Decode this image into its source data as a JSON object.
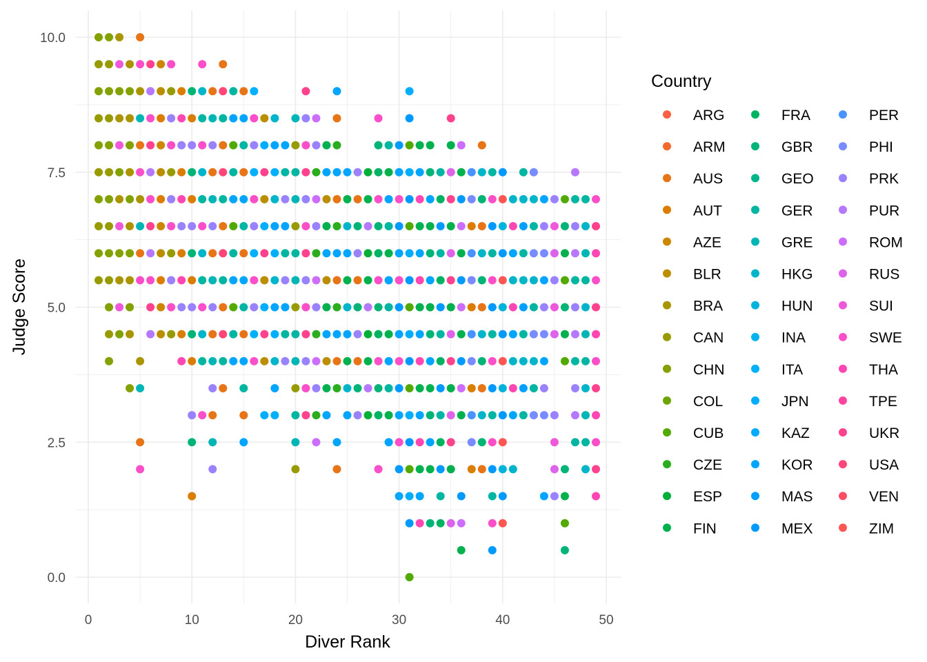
{
  "chart_data": {
    "type": "scatter",
    "xlabel": "Diver Rank",
    "ylabel": "Judge Score",
    "xlim": [
      0,
      50
    ],
    "ylim": [
      0,
      10
    ],
    "x_ticks": [
      "0",
      "10",
      "20",
      "30",
      "40",
      "50"
    ],
    "y_ticks": [
      "0.0",
      "2.5",
      "5.0",
      "7.5",
      "10.0"
    ],
    "grid": true,
    "legend": {
      "title": "Country",
      "placement": "right",
      "entries": [
        "ARG",
        "ARM",
        "AUS",
        "AUT",
        "AZE",
        "BLR",
        "BRA",
        "CAN",
        "CHN",
        "COL",
        "CUB",
        "CZE",
        "ESP",
        "FIN",
        "FRA",
        "GBR",
        "GEO",
        "GER",
        "GRE",
        "HKG",
        "HUN",
        "INA",
        "ITA",
        "JPN",
        "KAZ",
        "KOR",
        "MAS",
        "MEX",
        "PER",
        "PHI",
        "PRK",
        "PUR",
        "ROM",
        "RUS",
        "SUI",
        "SWE",
        "THA",
        "TPE",
        "UKR",
        "USA",
        "VEN",
        "ZIM"
      ]
    },
    "note": "Judge scores step 0.5; each rank lists contiguous range [min,max] plus extra low scores",
    "points_by_rank": [
      {
        "rank": 1,
        "min": 5.5,
        "max": 10,
        "extra": [],
        "countries": [
          "CHN",
          "CAN"
        ]
      },
      {
        "rank": 2,
        "min": 5.5,
        "max": 10,
        "extra": [
          4,
          4.5,
          5
        ],
        "countries": [
          "CHN",
          "CAN"
        ]
      },
      {
        "rank": 3,
        "min": 5.5,
        "max": 10,
        "extra": [
          4.5,
          5
        ],
        "countries": [
          "CHN",
          "SUI",
          "BRA"
        ]
      },
      {
        "rank": 4,
        "min": 5.5,
        "max": 9.5,
        "extra": [
          3.5,
          4.5,
          5
        ],
        "countries": [
          "CHN",
          "BRA"
        ]
      },
      {
        "rank": 5,
        "min": 5.5,
        "max": 10,
        "extra": [
          2,
          2.5,
          3.5,
          4
        ],
        "countries": [
          "BRA",
          "SWE",
          "AUS",
          "GRE"
        ]
      },
      {
        "rank": 6,
        "min": 4.5,
        "max": 9.5,
        "extra": [],
        "countries": [
          "PUR",
          "UKR",
          "SWE"
        ]
      },
      {
        "rank": 7,
        "min": 4.5,
        "max": 9.5,
        "extra": [],
        "countries": [
          "AUT",
          "BLR",
          "AZE"
        ]
      },
      {
        "rank": 8,
        "min": 4.5,
        "max": 9.5,
        "extra": [],
        "countries": [
          "SWE",
          "PRK",
          "CAN"
        ]
      },
      {
        "rank": 9,
        "min": 4,
        "max": 9,
        "extra": [],
        "countries": [
          "THA",
          "AUT",
          "PRK"
        ]
      },
      {
        "rank": 10,
        "min": 4,
        "max": 9,
        "extra": [
          1.5,
          2.5,
          3
        ],
        "countries": [
          "PRK",
          "AUT",
          "GBR"
        ]
      },
      {
        "rank": 11,
        "min": 4,
        "max": 9.5,
        "extra": [
          3
        ],
        "countries": [
          "GER",
          "HKG",
          "SWE"
        ]
      },
      {
        "rank": 12,
        "min": 4,
        "max": 9,
        "extra": [
          2,
          2.5,
          3,
          3.5
        ],
        "countries": [
          "PRK",
          "GRE",
          "AUS"
        ]
      },
      {
        "rank": 13,
        "min": 4,
        "max": 9.5,
        "extra": [
          3.5
        ],
        "countries": [
          "USA",
          "AUS",
          "GER"
        ]
      },
      {
        "rank": 14,
        "min": 4,
        "max": 9,
        "extra": [],
        "countries": [
          "GER",
          "CUB",
          "KOR"
        ]
      },
      {
        "rank": 15,
        "min": 4,
        "max": 9,
        "extra": [
          2.5,
          3,
          3.5
        ],
        "countries": [
          "KOR",
          "AUS",
          "GER"
        ]
      },
      {
        "rank": 16,
        "min": 4,
        "max": 9,
        "extra": [],
        "countries": [
          "PRK",
          "SWE",
          "ITA"
        ]
      },
      {
        "rank": 17,
        "min": 4,
        "max": 8.5,
        "extra": [
          3
        ],
        "countries": [
          "BLR",
          "UKR",
          "JPN"
        ]
      },
      {
        "rank": 18,
        "min": 4,
        "max": 8.5,
        "extra": [
          3,
          3.5
        ],
        "countries": [
          "ITA",
          "KOR",
          "HKG"
        ]
      },
      {
        "rank": 19,
        "min": 4,
        "max": 8,
        "extra": [],
        "countries": [
          "KOR",
          "PRK",
          "GER"
        ]
      },
      {
        "rank": 20,
        "min": 4,
        "max": 8.5,
        "extra": [
          2,
          2.5,
          3,
          3.5
        ],
        "countries": [
          "GRE",
          "GER",
          "CAN"
        ]
      },
      {
        "rank": 21,
        "min": 4,
        "max": 9,
        "extra": [
          3,
          3.5
        ],
        "countries": [
          "UKR",
          "SWE",
          "PRK"
        ]
      },
      {
        "rank": 22,
        "min": 4,
        "max": 8.5,
        "extra": [
          2.5,
          3,
          3.5
        ],
        "countries": [
          "PRK",
          "ROM",
          "CZE"
        ]
      },
      {
        "rank": 23,
        "min": 4,
        "max": 8,
        "extra": [
          3,
          3.5
        ],
        "countries": [
          "FIN",
          "BLR",
          "KOR"
        ]
      },
      {
        "rank": 24,
        "min": 4,
        "max": 9,
        "extra": [
          2,
          2.5,
          3.5
        ],
        "countries": [
          "AUS",
          "KOR",
          "CZE"
        ]
      },
      {
        "rank": 25,
        "min": 4,
        "max": 7.5,
        "extra": [
          3,
          3.5
        ],
        "countries": [
          "FIN",
          "KOR",
          "HKG"
        ]
      },
      {
        "rank": 26,
        "min": 4,
        "max": 7.5,
        "extra": [
          3,
          3.5
        ],
        "countries": [
          "GBR",
          "AUS",
          "PRK"
        ]
      },
      {
        "rank": 27,
        "min": 4,
        "max": 7.5,
        "extra": [
          3,
          3.5
        ],
        "countries": [
          "ESP",
          "PUR",
          "FIN"
        ]
      },
      {
        "rank": 28,
        "min": 4,
        "max": 8.5,
        "extra": [
          2,
          3,
          3.5
        ],
        "countries": [
          "GBR",
          "SWE",
          "FRA"
        ]
      },
      {
        "rank": 29,
        "min": 3,
        "max": 8,
        "extra": [
          2.5
        ],
        "countries": [
          "FIN",
          "GER",
          "KOR"
        ]
      },
      {
        "rank": 30,
        "min": 3,
        "max": 8,
        "extra": [
          1.5,
          2,
          2.5
        ],
        "countries": [
          "KOR",
          "MEX",
          "SWE"
        ]
      },
      {
        "rank": 31,
        "min": 3,
        "max": 9,
        "extra": [
          0,
          1,
          1.5,
          2,
          2.5
        ],
        "countries": [
          "JPN",
          "CUB",
          "MEX"
        ]
      },
      {
        "rank": 32,
        "min": 3,
        "max": 8,
        "extra": [
          1,
          1.5,
          2,
          2.5
        ],
        "countries": [
          "KOR",
          "FIN",
          "THA"
        ]
      },
      {
        "rank": 33,
        "min": 3,
        "max": 8,
        "extra": [
          1,
          2,
          2.5
        ],
        "countries": [
          "GBR",
          "FIN",
          "KOR"
        ]
      },
      {
        "rank": 34,
        "min": 3,
        "max": 7.5,
        "extra": [
          1,
          1.5,
          2,
          2.5
        ],
        "countries": [
          "MEX",
          "FRA",
          "GER"
        ]
      },
      {
        "rank": 35,
        "min": 3,
        "max": 8.5,
        "extra": [
          1,
          2,
          2.5
        ],
        "countries": [
          "FIN",
          "UKR",
          "RUS"
        ]
      },
      {
        "rank": 36,
        "min": 3,
        "max": 8,
        "extra": [
          0.5,
          1,
          1.5
        ],
        "countries": [
          "FIN",
          "ROM",
          "MEX"
        ]
      },
      {
        "rank": 37,
        "min": 3,
        "max": 7.5,
        "extra": [
          2,
          2.5
        ],
        "countries": [
          "PER",
          "AUT",
          "PHI"
        ]
      },
      {
        "rank": 38,
        "min": 3,
        "max": 8,
        "extra": [
          2,
          2.5
        ],
        "countries": [
          "GBR",
          "HKG",
          "AUS"
        ]
      },
      {
        "rank": 39,
        "min": 3,
        "max": 7.5,
        "extra": [
          0.5,
          1,
          1.5,
          2,
          2.5
        ],
        "countries": [
          "MEX",
          "SWE",
          "GER"
        ]
      },
      {
        "rank": 40,
        "min": 3,
        "max": 7.5,
        "extra": [
          1,
          1.5,
          2,
          2.5
        ],
        "countries": [
          "HUN",
          "ZIM",
          "MEX"
        ]
      },
      {
        "rank": 41,
        "min": 3,
        "max": 7,
        "extra": [
          2
        ],
        "countries": [
          "KOR",
          "THA",
          "HKG"
        ]
      },
      {
        "rank": 42,
        "min": 3,
        "max": 7.5,
        "extra": [],
        "countries": [
          "GER",
          "MAS",
          "HKG"
        ]
      },
      {
        "rank": 43,
        "min": 3,
        "max": 7.5,
        "extra": [],
        "countries": [
          "HKG",
          "PHI",
          "GER"
        ]
      },
      {
        "rank": 44,
        "min": 3,
        "max": 7,
        "extra": [
          1.5
        ],
        "countries": [
          "PHI",
          "PRK",
          "KOR"
        ]
      },
      {
        "rank": 45,
        "min": 4.5,
        "max": 7,
        "extra": [
          1.5,
          2,
          2.5,
          3
        ],
        "countries": [
          "PRK",
          "RUS",
          "SUI"
        ]
      },
      {
        "rank": 46,
        "min": 4,
        "max": 7,
        "extra": [
          0.5,
          1,
          1.5,
          2
        ],
        "countries": [
          "FIN",
          "GBR",
          "CUB"
        ]
      },
      {
        "rank": 47,
        "min": 4,
        "max": 7.5,
        "extra": [
          2.5,
          3,
          3.5
        ],
        "countries": [
          "PUR",
          "PRK",
          "GER"
        ]
      },
      {
        "rank": 48,
        "min": 4,
        "max": 7,
        "extra": [
          2,
          2.5,
          3,
          3.5
        ],
        "countries": [
          "HKG",
          "GER",
          "GRE"
        ]
      },
      {
        "rank": 49,
        "min": 4,
        "max": 7,
        "extra": [
          1.5,
          2,
          2.5,
          3,
          3.5
        ],
        "countries": [
          "SWE",
          "THA",
          "UKR"
        ]
      }
    ]
  }
}
